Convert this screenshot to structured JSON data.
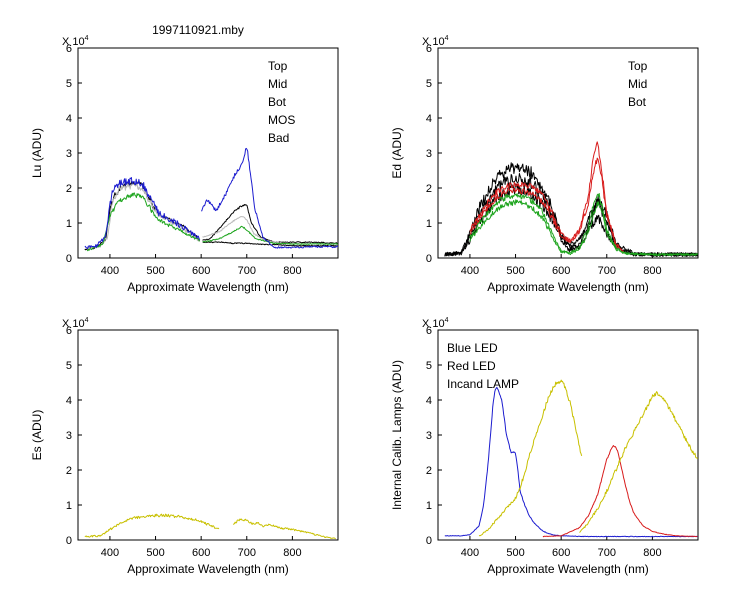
{
  "figure_title": "1997110921.mby",
  "colors": {
    "black": "#000000",
    "red": "#d81c1c",
    "green": "#1ea51e",
    "blue": "#1c1ccf",
    "gray": "#b8b8b8",
    "olive": "#c8c000"
  },
  "chart_data": [
    {
      "type": "line",
      "id": "lu",
      "xlabel": "Approximate Wavelength (nm)",
      "ylabel": "Lu (ADU)",
      "scale_label": "X 10",
      "scale_exp": "4",
      "xlim": [
        330,
        900
      ],
      "ylim": [
        0,
        6
      ],
      "xticks": [
        400,
        500,
        600,
        700,
        800
      ],
      "yticks": [
        0,
        1,
        2,
        3,
        4,
        5,
        6
      ],
      "legend": [
        {
          "label": "Top",
          "color": "black"
        },
        {
          "label": "Mid",
          "color": "red"
        },
        {
          "label": "Bot",
          "color": "green"
        },
        {
          "label": "MOS",
          "color": "blue"
        },
        {
          "label": "Bad",
          "color": "gray"
        }
      ],
      "series": [
        {
          "name": "Top",
          "color": "black",
          "noise": 0.05,
          "x": [
            345,
            370,
            390,
            400,
            410,
            430,
            450,
            470,
            480,
            500,
            520,
            560,
            590,
            597
          ],
          "y": [
            0.25,
            0.3,
            0.5,
            1.4,
            1.8,
            2.1,
            2.15,
            2.1,
            1.85,
            1.35,
            1.15,
            0.9,
            0.6,
            0.5
          ]
        },
        {
          "name": "Top",
          "color": "black",
          "noise": 0.02,
          "x": [
            603,
            620,
            650,
            670,
            690,
            700,
            710,
            730,
            760,
            800,
            850,
            900
          ],
          "y": [
            0.5,
            0.55,
            1.0,
            1.3,
            1.5,
            1.5,
            1.0,
            0.6,
            0.45,
            0.45,
            0.45,
            0.42
          ]
        },
        {
          "name": "Top",
          "color": "black",
          "noise": 0.02,
          "x": [
            603,
            620,
            650,
            670,
            690,
            700,
            720,
            760,
            820,
            900
          ],
          "y": [
            0.45,
            0.45,
            0.45,
            0.42,
            0.42,
            0.42,
            0.4,
            0.38,
            0.35,
            0.35
          ]
        },
        {
          "name": "Mid",
          "color": "gray",
          "noise": 0.06,
          "x": [
            350,
            380,
            395,
            405,
            420,
            440,
            460,
            475,
            490,
            510,
            540,
            570,
            597
          ],
          "y": [
            0.25,
            0.35,
            0.6,
            1.6,
            1.95,
            2.05,
            2.05,
            1.9,
            1.55,
            1.2,
            1.0,
            0.75,
            0.5
          ]
        },
        {
          "name": "Mid",
          "color": "gray",
          "noise": 0.02,
          "x": [
            603,
            640,
            670,
            690,
            700,
            715,
            740,
            780,
            840,
            900
          ],
          "y": [
            0.6,
            0.75,
            1.05,
            1.2,
            1.1,
            0.7,
            0.5,
            0.42,
            0.4,
            0.4
          ]
        },
        {
          "name": "Bot",
          "color": "green",
          "noise": 0.05,
          "x": [
            350,
            385,
            400,
            415,
            430,
            450,
            470,
            485,
            500,
            520,
            560,
            597
          ],
          "y": [
            0.22,
            0.4,
            1.2,
            1.55,
            1.7,
            1.8,
            1.75,
            1.5,
            1.15,
            1.0,
            0.75,
            0.5
          ]
        },
        {
          "name": "Bot",
          "color": "green",
          "noise": 0.02,
          "x": [
            603,
            640,
            670,
            690,
            700,
            720,
            760,
            820,
            900
          ],
          "y": [
            0.45,
            0.55,
            0.75,
            0.9,
            0.8,
            0.55,
            0.42,
            0.4,
            0.4
          ]
        },
        {
          "name": "MOS",
          "color": "blue",
          "noise": 0.08,
          "x": [
            345,
            370,
            390,
            405,
            420,
            440,
            460,
            475,
            490,
            510,
            540,
            570,
            597
          ],
          "y": [
            0.3,
            0.35,
            0.6,
            1.9,
            2.1,
            2.2,
            2.2,
            2.05,
            1.65,
            1.25,
            1.05,
            0.8,
            0.55
          ]
        },
        {
          "name": "MOS",
          "color": "blue",
          "noise": 0.04,
          "x": [
            600,
            612,
            622,
            632,
            645,
            660,
            675,
            690,
            700,
            708,
            718,
            735,
            760,
            800,
            850,
            900
          ],
          "y": [
            1.3,
            1.65,
            1.55,
            1.35,
            1.6,
            2.0,
            2.4,
            2.7,
            3.2,
            2.4,
            1.4,
            0.6,
            0.3,
            0.3,
            0.32,
            0.32
          ]
        }
      ]
    },
    {
      "type": "line",
      "id": "ed",
      "xlabel": "Approximate Wavelength (nm)",
      "ylabel": "Ed (ADU)",
      "scale_label": "X 10",
      "scale_exp": "4",
      "xlim": [
        330,
        900
      ],
      "ylim": [
        0,
        6
      ],
      "xticks": [
        400,
        500,
        600,
        700,
        800
      ],
      "yticks": [
        0,
        1,
        2,
        3,
        4,
        5,
        6
      ],
      "legend": [
        {
          "label": "Top",
          "color": "black"
        },
        {
          "label": "Mid",
          "color": "red"
        },
        {
          "label": "Bot",
          "color": "green"
        }
      ],
      "series": [
        {
          "name": "Top",
          "color": "black",
          "noise": 0.12,
          "x": [
            345,
            380,
            400,
            420,
            440,
            460,
            480,
            500,
            520,
            540,
            560,
            580,
            600,
            620,
            640,
            660,
            680,
            700,
            720,
            760,
            800,
            850,
            900
          ],
          "y": [
            0.1,
            0.15,
            0.7,
            1.4,
            1.9,
            2.3,
            2.5,
            2.6,
            2.55,
            2.4,
            2.0,
            1.4,
            0.7,
            0.3,
            0.4,
            0.9,
            1.7,
            1.3,
            0.4,
            0.12,
            0.1,
            0.1,
            0.1
          ]
        },
        {
          "name": "Top",
          "color": "black",
          "noise": 0.12,
          "x": [
            345,
            380,
            400,
            420,
            440,
            460,
            480,
            500,
            520,
            540,
            560,
            580,
            600,
            620,
            640,
            660,
            680,
            700,
            720,
            760,
            800,
            900
          ],
          "y": [
            0.1,
            0.13,
            0.6,
            1.2,
            1.65,
            2.0,
            2.2,
            2.3,
            2.25,
            2.1,
            1.8,
            1.3,
            0.6,
            0.4,
            0.5,
            1.1,
            1.6,
            1.0,
            0.35,
            0.1,
            0.1,
            0.1
          ]
        },
        {
          "name": "Top",
          "color": "black",
          "noise": 0.12,
          "x": [
            345,
            380,
            400,
            420,
            440,
            460,
            480,
            500,
            520,
            540,
            560,
            580,
            600,
            620,
            640,
            660,
            680,
            700,
            720,
            760,
            900
          ],
          "y": [
            0.1,
            0.12,
            0.5,
            1.0,
            1.4,
            1.7,
            1.9,
            2.0,
            1.95,
            1.8,
            1.5,
            1.1,
            0.55,
            0.2,
            0.3,
            0.8,
            1.2,
            0.7,
            0.3,
            0.1,
            0.1
          ]
        },
        {
          "name": "Mid",
          "color": "red",
          "noise": 0.06,
          "x": [
            400,
            420,
            440,
            460,
            480,
            500,
            520,
            540,
            560,
            580,
            600,
            620,
            640,
            660,
            670,
            680,
            690,
            700,
            720,
            740
          ],
          "y": [
            0.8,
            1.2,
            1.6,
            1.9,
            2.05,
            2.1,
            2.1,
            2.0,
            1.8,
            1.3,
            0.7,
            0.5,
            0.8,
            1.8,
            2.8,
            3.3,
            2.4,
            1.3,
            0.4,
            0.15
          ]
        },
        {
          "name": "Mid",
          "color": "red",
          "noise": 0.06,
          "x": [
            400,
            420,
            440,
            460,
            480,
            500,
            520,
            540,
            560,
            580,
            600,
            620,
            640,
            660,
            670,
            680,
            690,
            700,
            720,
            740
          ],
          "y": [
            0.7,
            1.1,
            1.45,
            1.75,
            1.9,
            1.95,
            1.9,
            1.8,
            1.6,
            1.15,
            0.6,
            0.45,
            0.75,
            1.6,
            2.4,
            2.9,
            2.2,
            1.2,
            0.35,
            0.15
          ]
        },
        {
          "name": "Bot",
          "color": "green",
          "noise": 0.06,
          "x": [
            400,
            420,
            440,
            460,
            480,
            500,
            520,
            540,
            560,
            580,
            600,
            620,
            640,
            660,
            670,
            680,
            690,
            700,
            720,
            740,
            800,
            900
          ],
          "y": [
            0.6,
            1.0,
            1.3,
            1.6,
            1.75,
            1.8,
            1.75,
            1.6,
            1.3,
            0.7,
            0.2,
            0.15,
            0.3,
            0.9,
            1.5,
            1.9,
            1.5,
            0.8,
            0.3,
            0.15,
            0.1,
            0.1
          ]
        },
        {
          "name": "Bot",
          "color": "green",
          "noise": 0.06,
          "x": [
            400,
            420,
            440,
            460,
            480,
            500,
            520,
            540,
            560,
            580,
            600,
            620,
            640,
            660,
            670,
            680,
            690,
            700,
            720,
            740,
            800,
            900
          ],
          "y": [
            0.5,
            0.85,
            1.15,
            1.4,
            1.55,
            1.6,
            1.55,
            1.4,
            1.15,
            0.6,
            0.18,
            0.12,
            0.25,
            0.7,
            1.2,
            1.6,
            1.3,
            0.7,
            0.25,
            0.12,
            0.1,
            0.1
          ]
        }
      ]
    },
    {
      "type": "line",
      "id": "es",
      "xlabel": "Approximate Wavelength (nm)",
      "ylabel": "Es (ADU)",
      "scale_label": "X 10",
      "scale_exp": "4",
      "xlim": [
        330,
        900
      ],
      "ylim": [
        0,
        6
      ],
      "xticks": [
        400,
        500,
        600,
        700,
        800
      ],
      "yticks": [
        0,
        1,
        2,
        3,
        4,
        5,
        6
      ],
      "legend": [],
      "series": [
        {
          "name": "Es",
          "color": "olive",
          "noise": 0.05,
          "x": [
            345,
            380,
            400,
            420,
            440,
            460,
            480,
            500,
            520,
            540,
            560,
            580,
            600,
            620,
            640
          ],
          "y": [
            0.1,
            0.12,
            0.3,
            0.45,
            0.58,
            0.65,
            0.68,
            0.7,
            0.7,
            0.68,
            0.65,
            0.6,
            0.52,
            0.42,
            0.3
          ]
        },
        {
          "name": "Es",
          "color": "olive",
          "noise": 0.04,
          "x": [
            670,
            680,
            690,
            700,
            715,
            725,
            735,
            750,
            770,
            800,
            830,
            860,
            880,
            895
          ],
          "y": [
            0.45,
            0.55,
            0.6,
            0.55,
            0.45,
            0.5,
            0.38,
            0.45,
            0.35,
            0.3,
            0.22,
            0.12,
            0.06,
            0.04
          ]
        }
      ]
    },
    {
      "type": "line",
      "id": "cal",
      "xlabel": "Approximate Wavelength (nm)",
      "ylabel": "Internal Calib. Lamps (ADU)",
      "scale_label": "X 10",
      "scale_exp": "4",
      "xlim": [
        330,
        900
      ],
      "ylim": [
        0,
        6
      ],
      "xticks": [
        400,
        500,
        600,
        700,
        800
      ],
      "yticks": [
        0,
        1,
        2,
        3,
        4,
        5,
        6
      ],
      "legend": [
        {
          "label": "Blue LED",
          "color": "blue"
        },
        {
          "label": "Red LED",
          "color": "red"
        },
        {
          "label": "Incand LAMP",
          "color": "olive"
        }
      ],
      "series": [
        {
          "name": "Blue LED",
          "color": "blue",
          "noise": 0.015,
          "x": [
            345,
            380,
            400,
            420,
            430,
            440,
            450,
            455,
            460,
            470,
            480,
            490,
            500,
            505,
            510,
            520,
            530,
            540,
            560,
            580,
            600,
            650,
            700,
            800,
            900
          ],
          "y": [
            0.12,
            0.12,
            0.15,
            0.4,
            1.0,
            2.2,
            3.8,
            4.3,
            4.35,
            4.0,
            3.0,
            2.5,
            2.5,
            2.0,
            1.4,
            1.0,
            0.7,
            0.5,
            0.25,
            0.15,
            0.12,
            0.1,
            0.1,
            0.1,
            0.1
          ]
        },
        {
          "name": "Red LED",
          "color": "red",
          "noise": 0.015,
          "x": [
            560,
            600,
            640,
            660,
            680,
            690,
            700,
            710,
            715,
            720,
            725,
            730,
            740,
            750,
            760,
            780,
            800,
            820,
            850,
            900
          ],
          "y": [
            0.1,
            0.12,
            0.35,
            0.7,
            1.3,
            1.8,
            2.3,
            2.6,
            2.7,
            2.65,
            2.5,
            2.2,
            1.6,
            1.1,
            0.75,
            0.4,
            0.25,
            0.18,
            0.12,
            0.1
          ]
        },
        {
          "name": "Incand LAMP",
          "color": "olive",
          "noise": 0.04,
          "x": [
            420,
            440,
            460,
            480,
            500,
            510,
            520,
            530,
            540,
            550,
            560,
            570,
            580,
            590,
            600,
            605,
            610,
            620,
            630,
            640,
            645
          ],
          "y": [
            0.1,
            0.3,
            0.6,
            0.9,
            1.2,
            1.5,
            1.9,
            2.4,
            2.8,
            3.2,
            3.6,
            4.0,
            4.3,
            4.5,
            4.55,
            4.5,
            4.3,
            3.9,
            3.3,
            2.7,
            2.35
          ]
        },
        {
          "name": "Incand LAMP",
          "color": "olive",
          "noise": 0.04,
          "x": [
            640,
            660,
            680,
            700,
            720,
            740,
            760,
            780,
            800,
            810,
            820,
            840,
            860,
            880,
            900
          ],
          "y": [
            0.2,
            0.5,
            0.9,
            1.4,
            2.0,
            2.6,
            3.1,
            3.6,
            4.1,
            4.2,
            4.1,
            3.7,
            3.2,
            2.7,
            2.3
          ]
        }
      ]
    }
  ]
}
